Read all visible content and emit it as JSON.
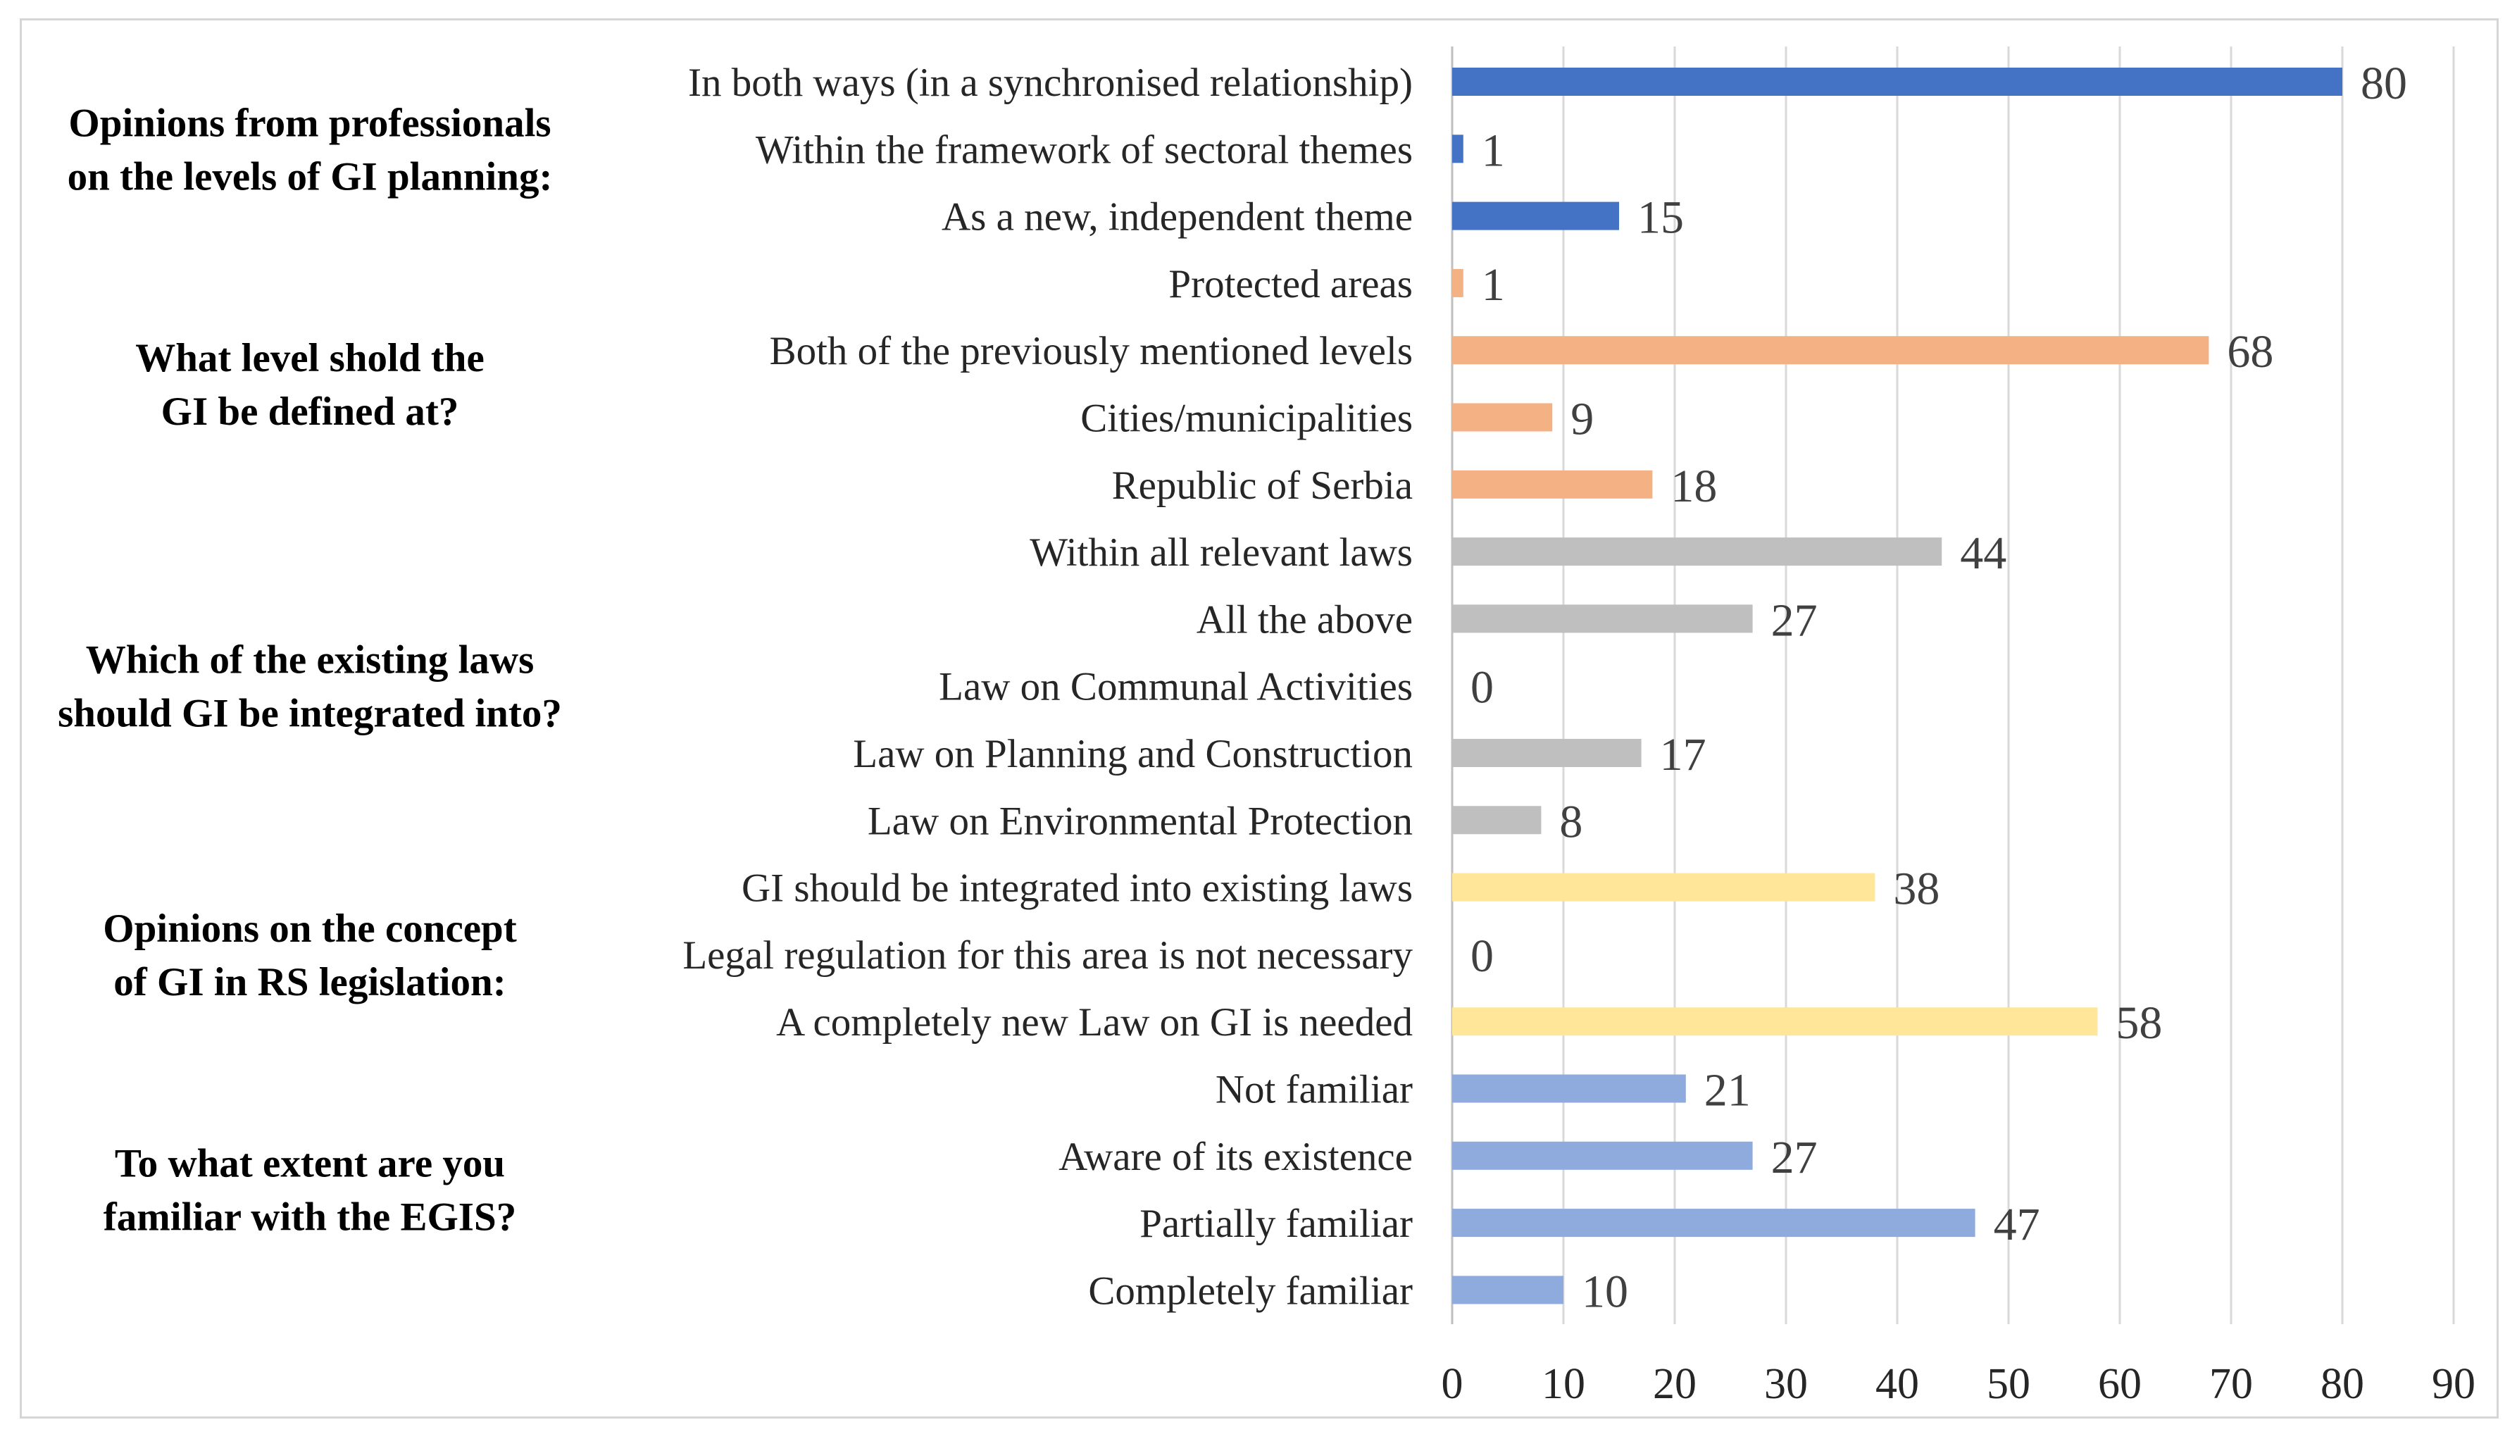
{
  "chart_data": {
    "type": "bar",
    "orientation": "horizontal",
    "xlim": [
      0,
      90
    ],
    "xticks": [
      0,
      10,
      20,
      30,
      40,
      50,
      60,
      70,
      80,
      90
    ],
    "grid": true,
    "groups": [
      {
        "title_lines": [
          "Opinions from professionals",
          "on the levels of GI planning:"
        ],
        "color": "#4472c4",
        "items": [
          {
            "label": "In both ways (in a synchronised relationship)",
            "value": 80
          },
          {
            "label": "Within the framework of sectoral themes",
            "value": 1
          },
          {
            "label": "As a new, independent theme",
            "value": 15
          }
        ]
      },
      {
        "title_lines": [
          "What level shold the",
          "GI be defined at?"
        ],
        "color": "#f4b183",
        "items": [
          {
            "label": "Protected areas",
            "value": 1
          },
          {
            "label": "Both of the previously mentioned levels",
            "value": 68
          },
          {
            "label": "Cities/municipalities",
            "value": 9
          },
          {
            "label": "Republic of Serbia",
            "value": 18
          }
        ]
      },
      {
        "title_lines": [
          "Which of the existing laws",
          "should GI be integrated into?"
        ],
        "color": "#bfbfbf",
        "items": [
          {
            "label": "Within all relevant laws",
            "value": 44
          },
          {
            "label": "All the above",
            "value": 27
          },
          {
            "label": "Law on Communal Activities",
            "value": 0
          },
          {
            "label": "Law on Planning and Construction",
            "value": 17
          },
          {
            "label": "Law on Environmental Protection",
            "value": 8
          }
        ]
      },
      {
        "title_lines": [
          "Opinions on the concept",
          "of GI in RS legislation:"
        ],
        "color": "#ffe699",
        "items": [
          {
            "label": "GI should be integrated into existing laws",
            "value": 38
          },
          {
            "label": "Legal regulation for this area is not necessary",
            "value": 0
          },
          {
            "label": "A completely new Law on GI is needed",
            "value": 58
          }
        ]
      },
      {
        "title_lines": [
          "To what extent are you",
          "familiar with the EGIS?"
        ],
        "color": "#8faadc",
        "items": [
          {
            "label": "Not familiar",
            "value": 21
          },
          {
            "label": "Aware of its existence",
            "value": 27
          },
          {
            "label": "Partially familiar",
            "value": 47
          },
          {
            "label": "Completely familiar",
            "value": 10
          }
        ]
      }
    ]
  }
}
